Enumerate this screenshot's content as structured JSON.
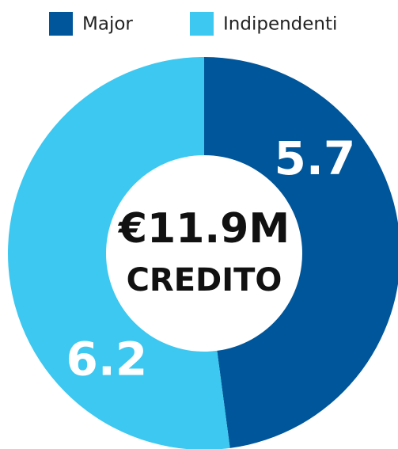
{
  "chart_data": {
    "type": "donut",
    "series": [
      {
        "name": "Major",
        "color": "#00569a",
        "values": [
          5.7
        ]
      },
      {
        "name": "Indipendenti",
        "color": "#3cc8f0",
        "values": [
          6.2
        ]
      }
    ],
    "center_label": "€11.9M",
    "center_sublabel": "CREDITO",
    "legend": "top"
  }
}
